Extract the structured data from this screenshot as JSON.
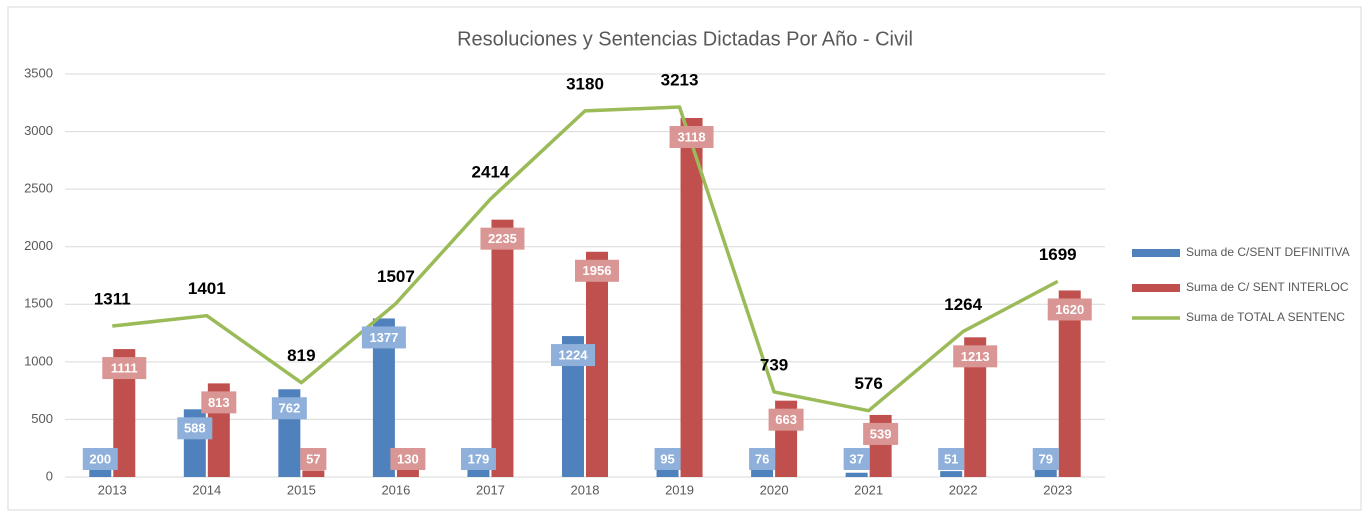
{
  "chart_data": {
    "type": "bar",
    "title": "Resoluciones  y Sentencias Dictadas Por Año - Civil",
    "categories": [
      "2013",
      "2014",
      "2015",
      "2016",
      "2017",
      "2018",
      "2019",
      "2020",
      "2021",
      "2022",
      "2023"
    ],
    "series": [
      {
        "name": "Suma de C/SENT DEFINITIVA",
        "type": "bar",
        "color": "#4f81bd",
        "label_color": "#8eb0db",
        "values": [
          200,
          588,
          762,
          1377,
          179,
          1224,
          95,
          76,
          37,
          51,
          79
        ]
      },
      {
        "name": "Suma de C/ SENT INTERLOC",
        "type": "bar",
        "color": "#c0504d",
        "label_color": "#d99694",
        "values": [
          1111,
          813,
          57,
          130,
          2235,
          1956,
          3118,
          663,
          539,
          1213,
          1620
        ]
      },
      {
        "name": "Suma de TOTAL A SENTENC",
        "type": "line",
        "color": "#9bbb59",
        "values": [
          1311,
          1401,
          819,
          1507,
          2414,
          3180,
          3213,
          739,
          576,
          1264,
          1699
        ]
      }
    ],
    "ylim": [
      0,
      3500
    ],
    "yticks": [
      0,
      500,
      1000,
      1500,
      2000,
      2500,
      3000,
      3500
    ],
    "grid": true,
    "legend": "right"
  }
}
